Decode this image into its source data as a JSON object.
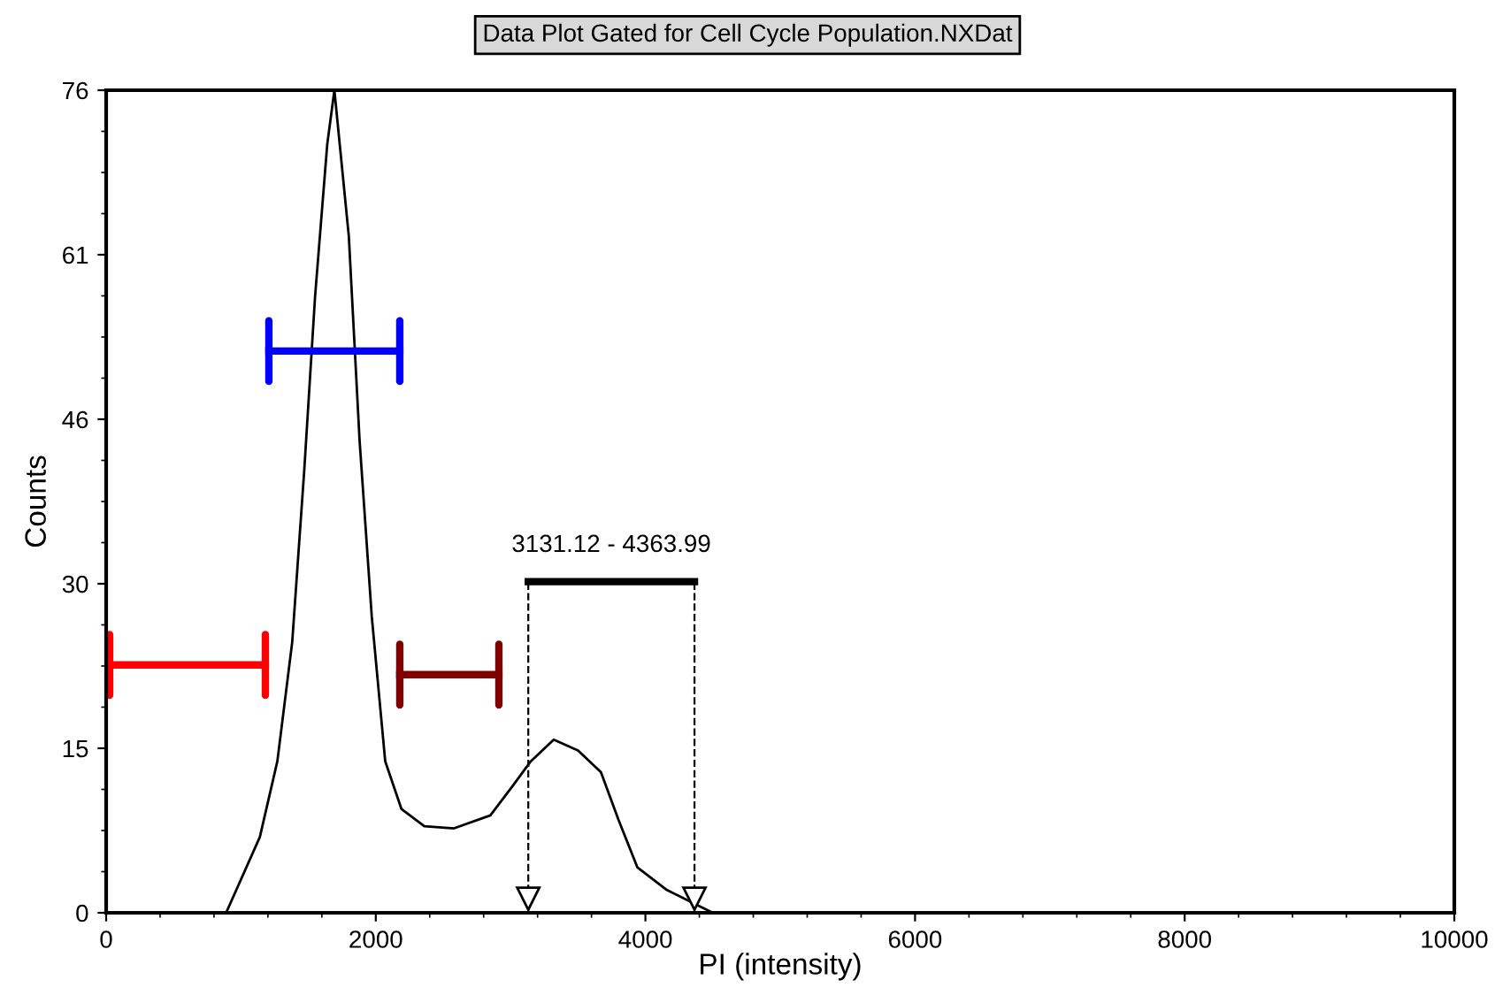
{
  "chart_data": {
    "type": "line",
    "title": "Data Plot Gated for Cell Cycle Population.NXDat",
    "xlabel": "PI (intensity)",
    "ylabel": "Counts",
    "x": [
      0,
      890,
      1140,
      1270,
      1380,
      1470,
      1550,
      1640,
      1693,
      1800,
      1880,
      1970,
      2070,
      2190,
      2360,
      2580,
      2850,
      3020,
      3150,
      3320,
      3500,
      3670,
      3800,
      3940,
      4160,
      4420,
      4500,
      10000
    ],
    "series": [
      {
        "color": "#000000",
        "values": [
          0,
          0,
          7,
          14,
          25,
          41,
          57,
          71,
          76,
          62.5,
          43.6,
          27.4,
          14,
          9.6,
          8,
          7.8,
          9,
          11.8,
          14,
          16,
          15,
          13,
          8.6,
          4.2,
          2.1,
          0.5,
          0,
          0
        ]
      },
      {
        "type": "line",
        "color": "#ff0000",
        "x": [
          26,
          1181
        ],
        "values": [
          22.9,
          22.9
        ]
      },
      {
        "type": "line",
        "color": "#0000ff",
        "x": [
          1207,
          2178
        ],
        "values": [
          51.9,
          51.9
        ]
      },
      {
        "type": "line",
        "color": "#800000",
        "x": [
          2178,
          2913
        ],
        "values": [
          22,
          22
        ]
      },
      {
        "type": "line",
        "color": "#000000",
        "x": [
          3131.12,
          4363.99
        ],
        "values": [
          30.6,
          30.6
        ]
      }
    ],
    "annotations": [
      {
        "text": "3131.12 - 4363.99",
        "x": 3747,
        "y": 30.6
      }
    ],
    "ref_lines": [
      {
        "axis": "x",
        "value": 3131.12,
        "line_style": "dashed",
        "color": "#000000"
      },
      {
        "axis": "x",
        "value": 4363.99,
        "line_style": "dashed",
        "color": "#000000"
      }
    ],
    "xlim": [
      0,
      10000
    ],
    "xticks": [
      0,
      2000,
      4000,
      6000,
      8000,
      10000
    ],
    "ylim": [
      0,
      76
    ],
    "yticks": [
      0,
      {
        "value": 15.2,
        "label": "15"
      },
      {
        "value": 30.4,
        "label": "30"
      },
      {
        "value": 45.6,
        "label": "46"
      },
      {
        "value": 60.8,
        "label": "61"
      },
      76
    ],
    "grid": false,
    "legend": false,
    "marker": "none",
    "line_style": "solid"
  }
}
